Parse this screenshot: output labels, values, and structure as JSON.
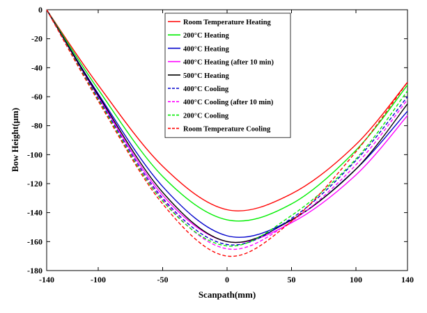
{
  "chart_data": {
    "type": "line",
    "title": "",
    "xlabel": "Scanpath(mm)",
    "ylabel": "Bow Height(μm)",
    "xlim": [
      -140,
      140
    ],
    "ylim": [
      -180,
      0
    ],
    "xticks": [
      -140,
      -100,
      -50,
      0,
      50,
      100,
      140
    ],
    "xtick_labels": [
      "-140",
      "-100",
      "-50",
      "0",
      "50",
      "100",
      "140"
    ],
    "yticks": [
      0,
      -20,
      -40,
      -60,
      -80,
      -100,
      -120,
      -140,
      -160,
      -180
    ],
    "ytick_labels": [
      "0",
      "-20",
      "-40",
      "-60",
      "-80",
      "-100",
      "-120",
      "-140",
      "-160",
      "-180"
    ],
    "grid": false,
    "legend_position": "top-center",
    "series": [
      {
        "name": "Room Temperature Heating",
        "color": "#ff0000",
        "dash": "solid",
        "x": [
          -140,
          -100,
          -50,
          0,
          50,
          100,
          140
        ],
        "y": [
          0,
          -52,
          -108,
          -138,
          -127,
          -93,
          -50
        ]
      },
      {
        "name": "200°C Heating",
        "color": "#00ee00",
        "dash": "solid",
        "x": [
          -140,
          -100,
          -50,
          0,
          50,
          100,
          140
        ],
        "y": [
          0,
          -55,
          -115,
          -145,
          -134,
          -97,
          -52
        ]
      },
      {
        "name": "400°C Heating",
        "color": "#0000cc",
        "dash": "solid",
        "x": [
          -140,
          -100,
          -50,
          0,
          50,
          100,
          140
        ],
        "y": [
          0,
          -58,
          -122,
          -156,
          -145,
          -110,
          -70
        ]
      },
      {
        "name": "400°C Heating (after 10 min)",
        "color": "#ff00ff",
        "dash": "solid",
        "x": [
          -140,
          -100,
          -50,
          0,
          50,
          100,
          140
        ],
        "y": [
          0,
          -60,
          -128,
          -160,
          -147,
          -114,
          -73
        ]
      },
      {
        "name": "500°C Heating",
        "color": "#000000",
        "dash": "solid",
        "x": [
          -140,
          -100,
          -50,
          0,
          50,
          100,
          140
        ],
        "y": [
          0,
          -59,
          -126,
          -160,
          -145,
          -110,
          -65
        ]
      },
      {
        "name": "400°C Cooling",
        "color": "#0000cc",
        "dash": "dashed",
        "x": [
          -140,
          -100,
          -50,
          0,
          50,
          100,
          140
        ],
        "y": [
          0,
          -61,
          -130,
          -162,
          -144,
          -104,
          -60
        ]
      },
      {
        "name": "400°C Cooling (after 10 min)",
        "color": "#ff00ff",
        "dash": "dashed",
        "x": [
          -140,
          -100,
          -50,
          0,
          50,
          100,
          140
        ],
        "y": [
          0,
          -62,
          -131,
          -165,
          -146,
          -107,
          -62
        ]
      },
      {
        "name": "200°C Cooling",
        "color": "#00ee00",
        "dash": "dashed",
        "x": [
          -140,
          -100,
          -50,
          0,
          50,
          100,
          140
        ],
        "y": [
          0,
          -62,
          -132,
          -163,
          -142,
          -103,
          -56
        ]
      },
      {
        "name": "Room Temperature Cooling",
        "color": "#ff0000",
        "dash": "dashed",
        "x": [
          -140,
          -100,
          -50,
          0,
          50,
          100,
          140
        ],
        "y": [
          0,
          -63,
          -134,
          -170,
          -146,
          -98,
          -50
        ]
      }
    ]
  }
}
